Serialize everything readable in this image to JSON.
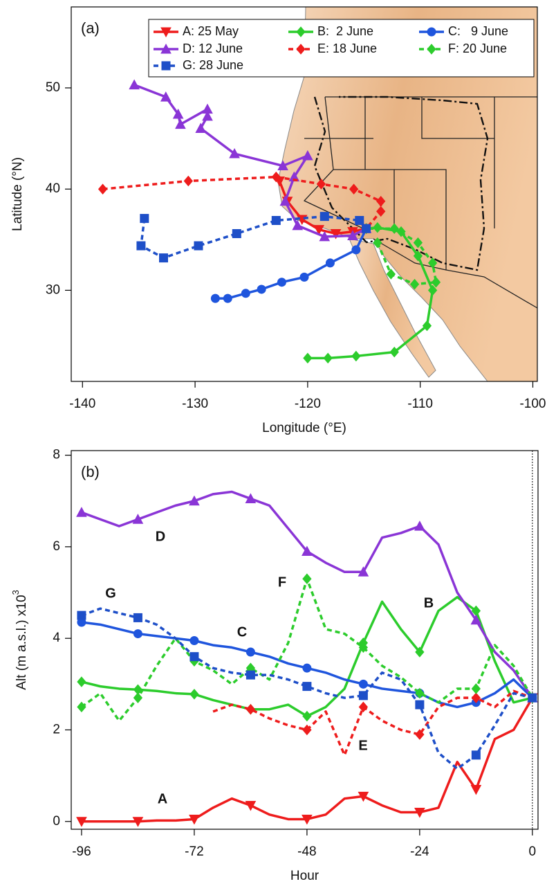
{
  "chart_data": [
    {
      "type": "trajectory",
      "panel_label": "(a)",
      "xlabel": "Longitude (°E)",
      "ylabel": "Latitude (°N)",
      "xlim": [
        -141,
        -99.6
      ],
      "ylim": [
        21,
        58
      ],
      "xticks": [
        -140,
        -130,
        -120,
        -110,
        -100
      ],
      "yticks": [
        30,
        40,
        50
      ],
      "series": [
        {
          "name": "A: 25 May",
          "color": "#ee1c1c",
          "dash": false,
          "marker": "triangle-down",
          "x": [
            -122.5,
            -121.8,
            -120.5,
            -119,
            -117.5,
            -116,
            -114.8
          ],
          "y": [
            40.8,
            38.8,
            37,
            36,
            35.6,
            35.8,
            36.1
          ]
        },
        {
          "name": "B:  2 June",
          "color": "#2ccc2c",
          "dash": false,
          "marker": "diamond",
          "x": [
            -120,
            -118.2,
            -115.7,
            -112.3,
            -109.4,
            -108.9,
            -110.2,
            -111.7,
            -113.8,
            -114.8
          ],
          "y": [
            23.3,
            23.3,
            23.5,
            23.9,
            26.5,
            30,
            33.4,
            35.8,
            36.2,
            36.1
          ]
        },
        {
          "name": "C:   9 June",
          "color": "#1f55dd",
          "dash": false,
          "marker": "circle",
          "x": [
            -128.2,
            -127.1,
            -125.5,
            -124.1,
            -122.3,
            -120.3,
            -118,
            -115.7,
            -114.8
          ],
          "y": [
            29.2,
            29.2,
            29.7,
            30.1,
            30.8,
            31.3,
            32.7,
            34.0,
            36.1
          ]
        },
        {
          "name": "D: 12 June",
          "color": "#8a35d6",
          "dash": false,
          "marker": "triangle-up",
          "x": [
            -135.4,
            -132.6,
            -131.5,
            -131.3,
            -128.9,
            -128.9,
            -129.5,
            -126.5,
            -122.2,
            -120.0,
            -121.2,
            -122.0,
            -120.9,
            -118.5,
            -116.0,
            -114.8
          ],
          "y": [
            50.3,
            49.1,
            47.4,
            46.4,
            47.9,
            47.2,
            46.0,
            43.5,
            42.3,
            43.3,
            41.2,
            38.8,
            36.4,
            35.3,
            35.4,
            36.1
          ]
        },
        {
          "name": "E: 18 June",
          "color": "#ee1c1c",
          "dash": true,
          "marker": "diamond",
          "x": [
            -138.2,
            -130.6,
            -122.8,
            -118.8,
            -115.9,
            -113.5,
            -113.5,
            -114.8
          ],
          "y": [
            40.0,
            40.8,
            41.2,
            40.5,
            40.0,
            38.8,
            37.8,
            36.1
          ]
        },
        {
          "name": "F: 20 June",
          "color": "#2ccc2c",
          "dash": true,
          "marker": "diamond",
          "x": [
            -113.8,
            -112.6,
            -110.5,
            -108.6,
            -108.9,
            -110.2,
            -112.3,
            -114.8
          ],
          "y": [
            34.7,
            31.6,
            30.6,
            30.8,
            32.7,
            34.7,
            36.1,
            36.1
          ]
        },
        {
          "name": "G: 28 June",
          "color": "#1e4fc8",
          "dash": true,
          "marker": "square",
          "x": [
            -134.5,
            -134.8,
            -132.8,
            -129.7,
            -126.3,
            -122.8,
            -118.5,
            -115.4,
            -114.8
          ],
          "y": [
            37.1,
            34.4,
            33.2,
            34.4,
            35.6,
            36.9,
            37.3,
            36.9,
            36.1
          ]
        }
      ]
    },
    {
      "type": "line",
      "panel_label": "(b)",
      "xlabel": "Hour",
      "ylabel": "Alt (m a.s.l.) x10",
      "ylabel_superscript": "3",
      "xlim": [
        -98.2,
        1.2
      ],
      "ylim": [
        -0.17,
        8.1
      ],
      "xticks": [
        -96,
        -72,
        -48,
        -24,
        0
      ],
      "yticks": [
        0,
        2,
        4,
        6,
        8
      ],
      "vline": 0,
      "x": [
        -96,
        -92,
        -88,
        -84,
        -80,
        -76,
        -72,
        -68,
        -64,
        -60,
        -56,
        -52,
        -48,
        -44,
        -40,
        -36,
        -32,
        -28,
        -24,
        -20,
        -16,
        -12,
        -8,
        -4,
        0
      ],
      "series": [
        {
          "name": "A",
          "color": "#ee1c1c",
          "dash": false,
          "marker": "triangle-down",
          "values": [
            0,
            0,
            0,
            0,
            0.02,
            0.02,
            0.05,
            0.3,
            0.5,
            0.35,
            0.15,
            0.05,
            0.05,
            0.15,
            0.5,
            0.55,
            0.35,
            0.2,
            0.2,
            0.3,
            1.3,
            0.7,
            1.8,
            2.0,
            2.7
          ]
        },
        {
          "name": "B",
          "color": "#2ccc2c",
          "dash": false,
          "marker": "diamond",
          "values": [
            3.05,
            2.95,
            2.9,
            2.88,
            2.85,
            2.8,
            2.78,
            2.65,
            2.55,
            2.45,
            2.45,
            2.55,
            2.3,
            2.5,
            2.9,
            3.9,
            4.8,
            4.2,
            3.7,
            4.6,
            4.9,
            4.6,
            3.5,
            2.6,
            2.7
          ]
        },
        {
          "name": "C",
          "color": "#1f55dd",
          "dash": false,
          "marker": "circle",
          "values": [
            4.35,
            4.3,
            4.2,
            4.1,
            4.05,
            4.0,
            3.95,
            3.85,
            3.8,
            3.7,
            3.6,
            3.45,
            3.35,
            3.25,
            3.1,
            3.0,
            2.9,
            2.85,
            2.8,
            2.6,
            2.5,
            2.6,
            2.8,
            3.1,
            2.7
          ]
        },
        {
          "name": "D",
          "color": "#8a35d6",
          "dash": false,
          "marker": "triangle-up",
          "values": [
            6.75,
            6.6,
            6.45,
            6.6,
            6.75,
            6.9,
            7.0,
            7.15,
            7.2,
            7.05,
            6.9,
            6.4,
            5.9,
            5.65,
            5.45,
            5.45,
            6.2,
            6.3,
            6.45,
            6.05,
            5.0,
            4.4,
            3.7,
            3.3,
            2.7
          ]
        },
        {
          "name": "E",
          "color": "#ee1c1c",
          "dash": true,
          "marker": "diamond",
          "values": [
            null,
            null,
            null,
            null,
            null,
            null,
            null,
            2.4,
            2.55,
            2.45,
            2.25,
            2.1,
            2.0,
            2.4,
            1.45,
            2.5,
            2.2,
            2.0,
            1.9,
            2.5,
            2.7,
            2.7,
            2.5,
            2.85,
            2.7
          ]
        },
        {
          "name": "F",
          "color": "#2ccc2c",
          "dash": true,
          "marker": "diamond",
          "values": [
            2.5,
            2.8,
            2.2,
            2.7,
            3.4,
            4.0,
            3.5,
            3.3,
            3.0,
            3.35,
            3.1,
            3.9,
            5.3,
            4.2,
            4.1,
            3.8,
            3.4,
            3.15,
            2.8,
            2.6,
            2.9,
            2.9,
            3.85,
            3.4,
            2.7
          ]
        },
        {
          "name": "G",
          "color": "#1e4fc8",
          "dash": true,
          "marker": "square",
          "values": [
            4.5,
            4.65,
            4.55,
            4.45,
            4.3,
            4.0,
            3.6,
            3.35,
            3.25,
            3.2,
            3.2,
            3.1,
            2.95,
            2.8,
            2.7,
            2.75,
            3.25,
            3.1,
            2.55,
            1.5,
            1.15,
            1.45,
            2.1,
            2.8,
            2.7
          ]
        }
      ]
    }
  ]
}
